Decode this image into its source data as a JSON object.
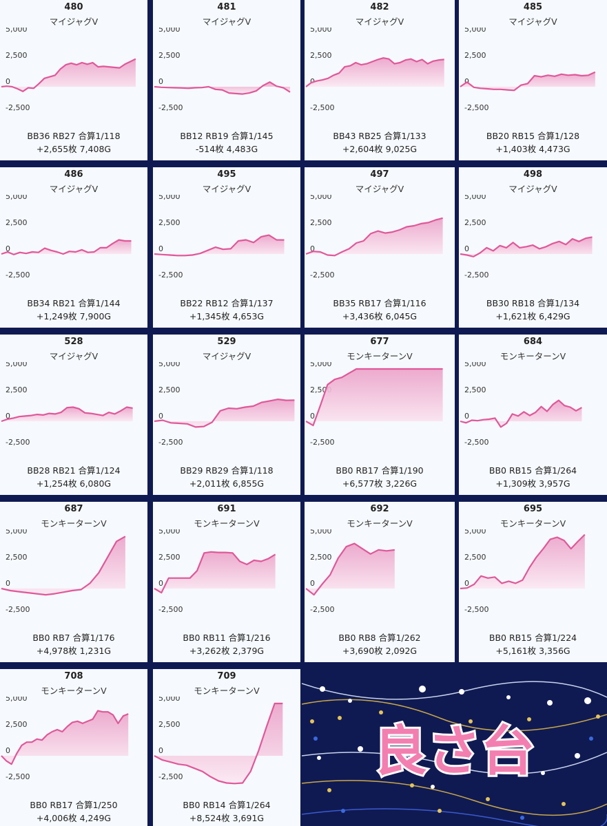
{
  "colors": {
    "line": "#e0589a",
    "fill_top": "#eba1c8",
    "fill_bottom": "#fbe8f2",
    "card_bg": "#f6f9fd",
    "banner_bg": "#101a52",
    "banner_text": "#f37fb0"
  },
  "y_axis_ticks": [
    "5,000",
    "2,500",
    "0",
    "-2,500"
  ],
  "banner": {
    "text": "良さ台"
  },
  "chart_data": [
    {
      "type": "area",
      "machine": "480",
      "model": "マイジャグV",
      "stats": "BB36 RB27 合算1/118",
      "total": "+2,655枚 7,408G",
      "ylim": [
        -2500,
        5000
      ],
      "x_end_fraction": 0.92,
      "values": [
        0,
        50,
        0,
        -200,
        -450,
        -100,
        -150,
        300,
        800,
        950,
        1100,
        1700,
        2100,
        2250,
        2100,
        2300,
        2150,
        2300,
        1900,
        1950,
        1900,
        1850,
        1800,
        2150,
        2400,
        2655
      ]
    },
    {
      "type": "area",
      "machine": "481",
      "model": "マイジャグV",
      "stats": "BB12 RB19 合算1/145",
      "total": "-514枚 4,483G",
      "ylim": [
        -2500,
        5000
      ],
      "x_end_fraction": 0.93,
      "values": [
        0,
        -50,
        -80,
        -100,
        -120,
        -150,
        -100,
        -80,
        0,
        -250,
        -300,
        -600,
        -650,
        -700,
        -600,
        -400,
        100,
        450,
        50,
        -100,
        -514
      ]
    },
    {
      "type": "area",
      "machine": "482",
      "model": "マイジャグV",
      "stats": "BB43 RB25 合算1/133",
      "total": "+2,604枚 9,025G",
      "ylim": [
        -2500,
        5000
      ],
      "x_end_fraction": 0.93,
      "values": [
        0,
        400,
        550,
        650,
        800,
        1100,
        1300,
        1900,
        2000,
        2300,
        2100,
        2200,
        2400,
        2600,
        2750,
        2650,
        2200,
        2300,
        2550,
        2650,
        2400,
        2600,
        2200,
        2450,
        2550,
        2604
      ]
    },
    {
      "type": "area",
      "machine": "485",
      "model": "マイジャグV",
      "stats": "BB20 RB15 合算1/128",
      "total": "+1,403枚 4,473G",
      "ylim": [
        -2500,
        5000
      ],
      "x_end_fraction": 0.92,
      "values": [
        0,
        450,
        -50,
        -150,
        -200,
        -250,
        -250,
        -300,
        -350,
        150,
        300,
        1050,
        950,
        1100,
        1000,
        1200,
        1100,
        1150,
        1050,
        1100,
        1403
      ]
    },
    {
      "type": "area",
      "machine": "486",
      "model": "マイジャグV",
      "stats": "BB34 RB21 合算1/144",
      "total": "+1,249枚 7,900G",
      "ylim": [
        -2500,
        5000
      ],
      "x_end_fraction": 0.89,
      "values": [
        0,
        200,
        -50,
        150,
        50,
        200,
        150,
        550,
        350,
        200,
        0,
        250,
        200,
        400,
        150,
        200,
        600,
        600,
        1000,
        1350,
        1250,
        1249
      ]
    },
    {
      "type": "area",
      "machine": "495",
      "model": "マイジャグV",
      "stats": "BB22 RB12 合算1/137",
      "total": "+1,345枚 4,653G",
      "ylim": [
        -2500,
        5000
      ],
      "x_end_fraction": 0.89,
      "values": [
        0,
        -50,
        -100,
        -150,
        -150,
        -100,
        50,
        350,
        650,
        450,
        500,
        1250,
        1350,
        1100,
        1650,
        1800,
        1350,
        1345
      ]
    },
    {
      "type": "area",
      "machine": "497",
      "model": "マイジャグV",
      "stats": "BB35 RB17 合算1/116",
      "total": "+3,436枚 6,045G",
      "ylim": [
        -2500,
        5000
      ],
      "x_end_fraction": 0.92,
      "values": [
        0,
        250,
        200,
        -100,
        -150,
        200,
        500,
        1050,
        1250,
        1950,
        2200,
        2000,
        2100,
        2300,
        2600,
        2700,
        2900,
        3000,
        3250,
        3436
      ]
    },
    {
      "type": "area",
      "machine": "498",
      "model": "マイジャグV",
      "stats": "BB30 RB18 合算1/134",
      "total": "+1,621枚 6,429G",
      "ylim": [
        -2500,
        5000
      ],
      "x_end_fraction": 0.9,
      "values": [
        0,
        -100,
        -250,
        100,
        600,
        300,
        800,
        600,
        1100,
        600,
        700,
        850,
        500,
        700,
        1000,
        1200,
        900,
        1450,
        1200,
        1500,
        1621
      ]
    },
    {
      "type": "area",
      "machine": "528",
      "model": "マイジャグV",
      "stats": "BB28 RB21 合算1/124",
      "total": "+1,254枚 6,080G",
      "ylim": [
        -2500,
        5000
      ],
      "x_end_fraction": 0.9,
      "values": [
        0,
        200,
        300,
        450,
        500,
        550,
        650,
        600,
        750,
        700,
        850,
        1300,
        1350,
        1200,
        800,
        750,
        650,
        550,
        850,
        700,
        1000,
        1350,
        1254
      ]
    },
    {
      "type": "area",
      "machine": "529",
      "model": "マイジャグV",
      "stats": "BB29 RB29 合算1/118",
      "total": "+2,011枚 6,855G",
      "ylim": [
        -2500,
        5000
      ],
      "x_end_fraction": 0.96,
      "values": [
        0,
        100,
        -150,
        -200,
        -250,
        -550,
        -500,
        -100,
        1000,
        1250,
        1200,
        1350,
        1450,
        1800,
        1950,
        2100,
        2000,
        2011
      ]
    },
    {
      "type": "area",
      "machine": "677",
      "model": "モンキーターンV",
      "stats": "BB0 RB17 合算1/190",
      "total": "+6,577枚 3,226G",
      "ylim": [
        -2500,
        5000
      ],
      "x_end_fraction": 0.92,
      "values": [
        0,
        -400,
        1500,
        3500,
        4000,
        4200,
        4600,
        5000,
        5000,
        5000,
        5000,
        5000,
        5000,
        5000,
        5000,
        5000,
        5000,
        5000,
        5000,
        5000
      ]
    },
    {
      "type": "area",
      "machine": "684",
      "model": "モンキーターンV",
      "stats": "BB0 RB15 合算1/264",
      "total": "+1,309枚 3,957G",
      "ylim": [
        -2500,
        5000
      ],
      "x_end_fraction": 0.83,
      "values": [
        0,
        -150,
        100,
        50,
        150,
        200,
        300,
        -550,
        -200,
        700,
        500,
        900,
        550,
        850,
        1400,
        950,
        1600,
        2000,
        1500,
        1350,
        1000,
        1309
      ]
    },
    {
      "type": "area",
      "machine": "687",
      "model": "モンキーターンV",
      "stats": "BB0 RB7 合算1/176",
      "total": "+4,978枚 1,231G",
      "ylim": [
        -2500,
        5000
      ],
      "x_end_fraction": 0.85,
      "values": [
        0,
        -200,
        -300,
        -400,
        -500,
        -600,
        -500,
        -350,
        -200,
        -100,
        500,
        1500,
        3000,
        4500,
        4978
      ]
    },
    {
      "type": "area",
      "machine": "691",
      "model": "モンキーターンV",
      "stats": "BB0 RB11 合算1/216",
      "total": "+3,262枚 2,379G",
      "ylim": [
        -2500,
        5000
      ],
      "x_end_fraction": 0.83,
      "values": [
        0,
        -400,
        1000,
        1000,
        1000,
        1000,
        1700,
        3400,
        3500,
        3450,
        3450,
        3400,
        2600,
        2300,
        2700,
        2600,
        2850,
        3262
      ]
    },
    {
      "type": "area",
      "machine": "692",
      "model": "モンキーターンV",
      "stats": "BB0 RB8 合算1/262",
      "total": "+3,690枚 2,092G",
      "ylim": [
        -2500,
        5000
      ],
      "x_end_fraction": 0.6,
      "values": [
        0,
        -600,
        400,
        1300,
        2900,
        4000,
        4300,
        3800,
        3300,
        3700,
        3600,
        3690
      ]
    },
    {
      "type": "area",
      "machine": "695",
      "model": "モンキーターンV",
      "stats": "BB0 RB15 合算1/224",
      "total": "+5,161枚 3,356G",
      "ylim": [
        -2500,
        5000
      ],
      "x_end_fraction": 0.85,
      "values": [
        0,
        50,
        400,
        1200,
        1000,
        1100,
        500,
        700,
        500,
        800,
        2000,
        3000,
        3800,
        4700,
        4900,
        4600,
        3800,
        4500,
        5161
      ]
    },
    {
      "type": "area",
      "machine": "708",
      "model": "モンキーターンV",
      "stats": "BB0 RB17 合算1/250",
      "total": "+4,006枚 4,249G",
      "ylim": [
        -2500,
        5000
      ],
      "x_end_fraction": 0.87,
      "values": [
        0,
        -500,
        -800,
        200,
        1000,
        1300,
        1300,
        1600,
        1500,
        2000,
        2300,
        2500,
        2300,
        2800,
        3200,
        3300,
        3100,
        3300,
        3500,
        4300,
        4200,
        4200,
        3900,
        3100,
        3800,
        4006
      ]
    },
    {
      "type": "area",
      "machine": "709",
      "model": "モンキーターンV",
      "stats": "BB0 RB14 合算1/264",
      "total": "+8,524枚 3,691G",
      "ylim": [
        -2500,
        5000
      ],
      "x_end_fraction": 0.88,
      "values": [
        0,
        -400,
        -600,
        -800,
        -900,
        -1200,
        -1500,
        -2000,
        -2400,
        -2600,
        -2650,
        -2600,
        -1500,
        500,
        2800,
        5000,
        5000
      ]
    }
  ]
}
